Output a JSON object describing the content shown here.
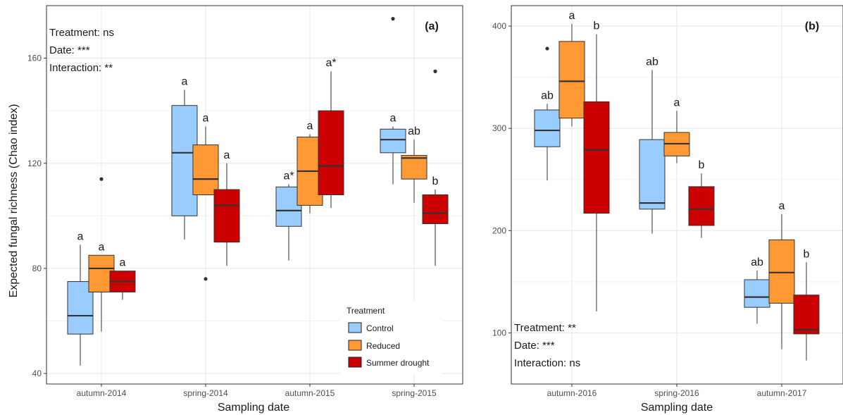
{
  "chart_data": [
    {
      "type": "boxplot",
      "panel_label": "(a)",
      "xlabel": "Sampling date",
      "ylabel": "Expected fungal richness (Chao index)",
      "ylim": [
        36,
        180
      ],
      "yticks": [
        40,
        80,
        120,
        160
      ],
      "grid": true,
      "categories": [
        "autumn-2014",
        "spring-2014",
        "autumn-2015",
        "spring-2015"
      ],
      "annotations": [
        "Treatment: ns",
        "Date: ***",
        "Interaction: **"
      ],
      "legend": {
        "title": "Treatment",
        "placement": "bottom-right",
        "entries": [
          {
            "label": "Control",
            "color": "#99CCFF"
          },
          {
            "label": "Reduced",
            "color": "#FF9933"
          },
          {
            "label": "Summer drought",
            "color": "#CC0000"
          }
        ]
      },
      "series": [
        {
          "name": "Control",
          "color": "#99CCFF",
          "boxes": [
            {
              "min": 43,
              "q1": 55,
              "median": 62,
              "q3": 75,
              "max": 89,
              "outliers": [],
              "letter": "a"
            },
            {
              "min": 91,
              "q1": 100,
              "median": 124,
              "q3": 142,
              "max": 148,
              "outliers": [],
              "letter": "a"
            },
            {
              "min": 83,
              "q1": 96,
              "median": 102,
              "q3": 111,
              "max": 112,
              "outliers": [],
              "letter": "a*"
            },
            {
              "min": 112,
              "q1": 124,
              "median": 129,
              "q3": 133,
              "max": 134,
              "outliers": [
                175
              ],
              "letter": "a"
            }
          ]
        },
        {
          "name": "Reduced",
          "color": "#FF9933",
          "boxes": [
            {
              "min": 56,
              "q1": 71,
              "median": 80,
              "q3": 85,
              "max": 85,
              "outliers": [
                114
              ],
              "letter": "a"
            },
            {
              "min": 108,
              "q1": 108,
              "median": 114,
              "q3": 127,
              "max": 134,
              "outliers": [
                76
              ],
              "letter": "a"
            },
            {
              "min": 101,
              "q1": 104,
              "median": 117,
              "q3": 130,
              "max": 131,
              "outliers": [],
              "letter": "a"
            },
            {
              "min": 105,
              "q1": 114,
              "median": 122,
              "q3": 123,
              "max": 129,
              "outliers": [],
              "letter": "ab"
            }
          ]
        },
        {
          "name": "Summer drought",
          "color": "#CC0000",
          "boxes": [
            {
              "min": 68,
              "q1": 71,
              "median": 75,
              "q3": 79,
              "max": 79,
              "outliers": [],
              "letter": "a"
            },
            {
              "min": 81,
              "q1": 90,
              "median": 104,
              "q3": 110,
              "max": 120,
              "outliers": [],
              "letter": "a"
            },
            {
              "min": 103,
              "q1": 108,
              "median": 119,
              "q3": 140,
              "max": 155,
              "outliers": [],
              "letter": "a*"
            },
            {
              "min": 81,
              "q1": 97,
              "median": 101,
              "q3": 108,
              "max": 110,
              "outliers": [
                155
              ],
              "letter": "b"
            }
          ]
        }
      ]
    },
    {
      "type": "boxplot",
      "panel_label": "(b)",
      "xlabel": "Sampling date",
      "ylabel": "",
      "ylim": [
        50,
        420
      ],
      "yticks": [
        100,
        200,
        300,
        400
      ],
      "grid": true,
      "categories": [
        "autumn-2016",
        "spring-2016",
        "autumn-2017"
      ],
      "annotations": [
        "Treatment: **",
        "Date: ***",
        "Interaction: ns"
      ],
      "series": [
        {
          "name": "Control",
          "color": "#99CCFF",
          "boxes": [
            {
              "min": 249,
              "q1": 282,
              "median": 298,
              "q3": 318,
              "max": 324,
              "outliers": [
                378
              ],
              "letter": "ab"
            },
            {
              "min": 197,
              "q1": 221,
              "median": 227,
              "q3": 289,
              "max": 357,
              "outliers": [],
              "letter": "ab"
            },
            {
              "min": 109,
              "q1": 125,
              "median": 135,
              "q3": 152,
              "max": 161,
              "outliers": [],
              "letter": "ab"
            }
          ]
        },
        {
          "name": "Reduced",
          "color": "#FF9933",
          "boxes": [
            {
              "min": 302,
              "q1": 310,
              "median": 346,
              "q3": 385,
              "max": 402,
              "outliers": [],
              "letter": "a"
            },
            {
              "min": 266,
              "q1": 273,
              "median": 285,
              "q3": 296,
              "max": 317,
              "outliers": [],
              "letter": "a"
            },
            {
              "min": 84,
              "q1": 129,
              "median": 159,
              "q3": 191,
              "max": 216,
              "outliers": [],
              "letter": "a"
            }
          ]
        },
        {
          "name": "Summer drought",
          "color": "#CC0000",
          "boxes": [
            {
              "min": 121,
              "q1": 217,
              "median": 279,
              "q3": 326,
              "max": 392,
              "outliers": [],
              "letter": "b"
            },
            {
              "min": 193,
              "q1": 205,
              "median": 221,
              "q3": 243,
              "max": 256,
              "outliers": [],
              "letter": "b"
            },
            {
              "min": 73,
              "q1": 99,
              "median": 103,
              "q3": 137,
              "max": 169,
              "outliers": [],
              "letter": "b"
            }
          ]
        }
      ]
    }
  ]
}
